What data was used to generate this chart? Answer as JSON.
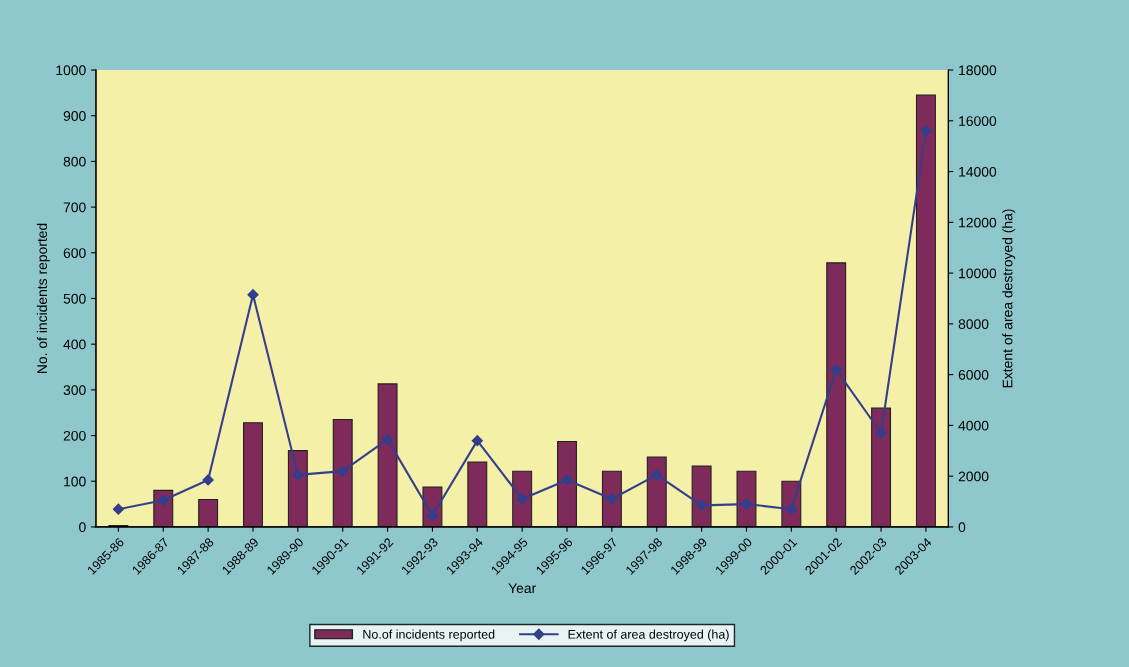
{
  "chart_data": {
    "type": "bar",
    "xlabel": "Year",
    "ylabel": "No. of incidents reported",
    "y2label": "Extent of area destroyed (ha)",
    "categories": [
      "1985-86",
      "1986-87",
      "1987-88",
      "1988-89",
      "1989-90",
      "1990-91",
      "1991-92",
      "1992-93",
      "1993-94",
      "1994-95",
      "1995-96",
      "1996-97",
      "1997-98",
      "1998-99",
      "1999-00",
      "2000-01",
      "2001-02",
      "2002-03",
      "2003-04"
    ],
    "series": [
      {
        "name": "No.of incidents reported",
        "color": "#7e2a5a",
        "values": [
          3,
          80,
          60,
          228,
          167,
          235,
          313,
          87,
          142,
          122,
          187,
          122,
          153,
          133,
          122,
          100,
          578,
          260,
          945
        ]
      },
      {
        "name": "Extent of area destroyed (ha)",
        "type": "line",
        "axis": "y2",
        "color": "#333e8c",
        "marker": "diamond",
        "values": [
          700,
          1050,
          1850,
          9150,
          2050,
          2200,
          3450,
          450,
          3400,
          1100,
          1850,
          1100,
          2050,
          850,
          900,
          700,
          6200,
          3700,
          15600
        ]
      }
    ],
    "ylim": [
      0,
      1000
    ],
    "yticks": [
      0,
      100,
      200,
      300,
      400,
      500,
      600,
      700,
      800,
      900,
      1000
    ],
    "y2lim": [
      0,
      18000
    ],
    "y2ticks": [
      0,
      2000,
      4000,
      6000,
      8000,
      10000,
      12000,
      14000,
      16000,
      18000
    ],
    "grid": false,
    "legend": "bottom"
  }
}
